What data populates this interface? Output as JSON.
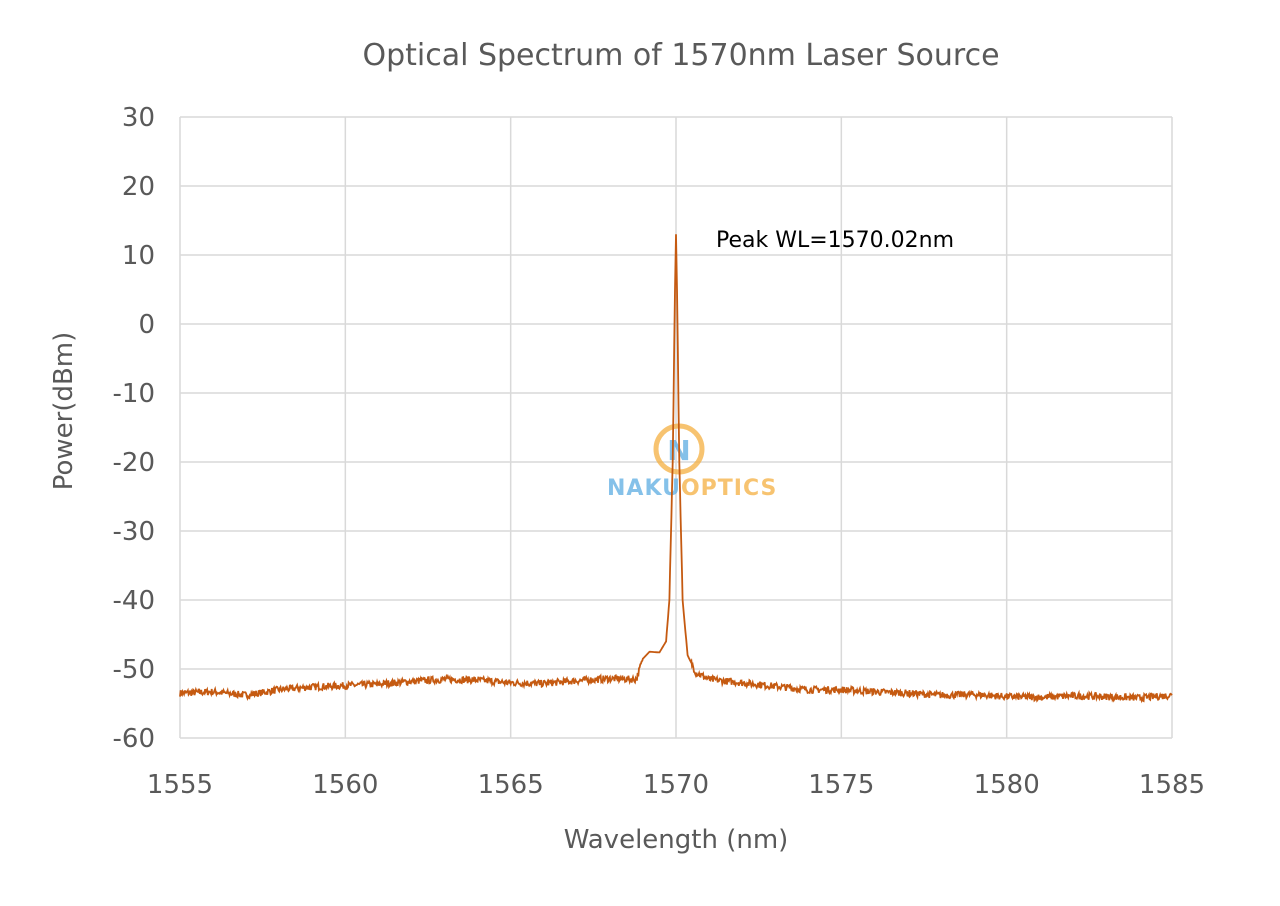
{
  "chart_data": {
    "type": "line",
    "title": "Optical Spectrum of 1570nm Laser Source",
    "xlabel": "Wavelength (nm)",
    "ylabel": "Power(dBm)",
    "xlim": [
      1555,
      1585
    ],
    "ylim": [
      -60,
      30
    ],
    "xticks": [
      "1555",
      "1560",
      "1565",
      "1570",
      "1575",
      "1580",
      "1585"
    ],
    "yticks": [
      "30",
      "20",
      "10",
      "0",
      "-10",
      "-20",
      "-30",
      "-40",
      "-50",
      "-60"
    ],
    "grid": true,
    "annotation": "Peak WL=1570.02nm",
    "line_color": "#C55A11",
    "series": [
      {
        "x": [
          1555,
          1556,
          1557,
          1558,
          1559,
          1560,
          1561,
          1562,
          1563,
          1564,
          1565,
          1566,
          1567,
          1568,
          1568.8,
          1569.0,
          1569.2,
          1569.5,
          1569.7,
          1569.8,
          1569.9,
          1569.97,
          1570.0,
          1570.03,
          1570.1,
          1570.2,
          1570.35,
          1570.6,
          1571,
          1572,
          1573,
          1574,
          1575,
          1576,
          1577,
          1578,
          1579,
          1580,
          1581,
          1582,
          1583,
          1584,
          1585
        ],
        "y": [
          -53.5,
          -53.3,
          -53.8,
          -53.0,
          -52.6,
          -52.4,
          -52.2,
          -51.8,
          -51.5,
          -51.6,
          -52.0,
          -52.1,
          -51.7,
          -51.4,
          -51.5,
          -48.5,
          -47.5,
          -47.6,
          -46,
          -40,
          -20,
          5,
          13,
          5,
          -20,
          -40,
          -48,
          -50.5,
          -51.5,
          -52.0,
          -52.5,
          -53.0,
          -53.0,
          -53.3,
          -53.5,
          -53.8,
          -53.7,
          -54.0,
          -54.1,
          -53.9,
          -54.0,
          -54.2,
          -53.8
        ]
      }
    ]
  },
  "watermark": {
    "text_left": "NAKU",
    "text_right": "OPTICS",
    "letter": "N"
  }
}
